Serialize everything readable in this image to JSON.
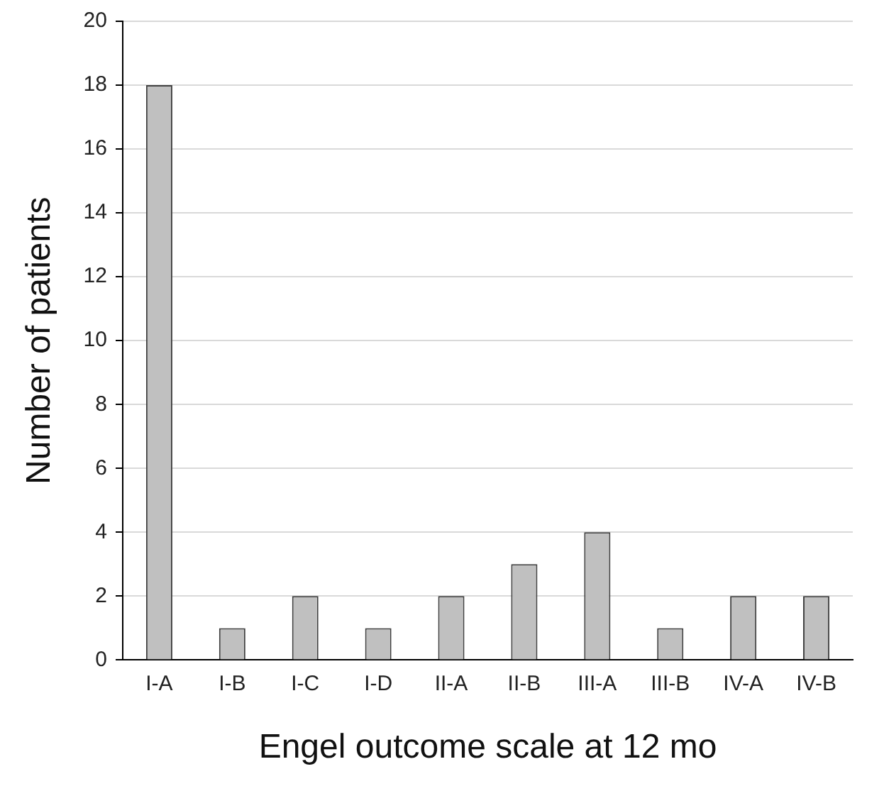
{
  "chart_data": {
    "type": "bar",
    "xlabel": "Engel outcome scale at 12 mo",
    "ylabel": "Number of patients",
    "categories": [
      "I-A",
      "I-B",
      "I-C",
      "I-D",
      "II-A",
      "II-B",
      "III-A",
      "III-B",
      "IV-A",
      "IV-B"
    ],
    "values": [
      18,
      1,
      2,
      1,
      2,
      3,
      4,
      1,
      2,
      2
    ],
    "color": "#c0c0c0",
    "ylim": [
      0,
      20
    ],
    "yticks": [
      0,
      2,
      4,
      6,
      8,
      10,
      12,
      14,
      16,
      18,
      20
    ],
    "grid": "y",
    "legend": false
  }
}
